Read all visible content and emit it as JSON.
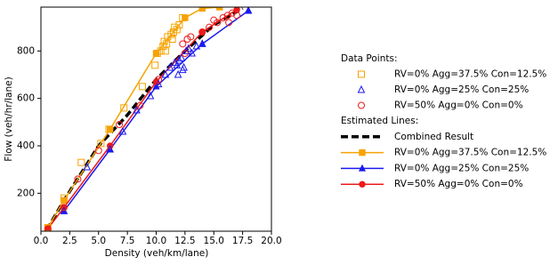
{
  "chart_data": {
    "type": "scatter",
    "x_label": "Density (veh/km/lane)",
    "y_label": "Flow (veh/hr/lane)",
    "xlim": [
      0,
      20
    ],
    "ylim": [
      40,
      985
    ],
    "xticks": [
      {
        "value": 0,
        "label": "0.0"
      },
      {
        "value": 2.5,
        "label": "2.5"
      },
      {
        "value": 5,
        "label": "5.0"
      },
      {
        "value": 7.5,
        "label": "7.5"
      },
      {
        "value": 10,
        "label": "10.0"
      },
      {
        "value": 12.5,
        "label": "12.5"
      },
      {
        "value": 15,
        "label": "15.0"
      },
      {
        "value": 17.5,
        "label": "17.5"
      },
      {
        "value": 20,
        "label": "20.0"
      }
    ],
    "yticks": [
      200,
      400,
      600,
      800
    ],
    "scatter": {
      "legend_title": "Data Points:",
      "series": [
        {
          "name": "RV=0% Agg=37.5% Con=12.5%",
          "color": "#f5a300",
          "marker": "square",
          "x": [
            0.6,
            2,
            3.5,
            5.2,
            5.9,
            7.2,
            8.8,
            9.9,
            10.1,
            10.4,
            10.6,
            10.7,
            10.9,
            11.0,
            11.3,
            11.5,
            11.6,
            11.8,
            12.0,
            12.3,
            11.4,
            10.8
          ],
          "y": [
            55,
            180,
            330,
            410,
            470,
            560,
            650,
            740,
            790,
            800,
            820,
            840,
            830,
            860,
            870,
            880,
            900,
            890,
            910,
            940,
            850,
            800
          ]
        },
        {
          "name": "RV=0% Agg=25% Con=25%",
          "color": "#1a1aee",
          "marker": "triangle",
          "x": [
            2,
            4,
            6,
            7.1,
            8.3,
            9.5,
            10.2,
            10.8,
            11.2,
            11.6,
            11.8,
            12,
            12.2,
            12.4,
            12.6,
            12.8,
            13.1,
            13.5,
            11.9,
            12.3,
            14,
            18
          ],
          "y": [
            125,
            310,
            385,
            460,
            550,
            610,
            660,
            700,
            730,
            750,
            740,
            760,
            770,
            730,
            800,
            810,
            790,
            820,
            700,
            720,
            830,
            970
          ]
        },
        {
          "name": "RV=50% Agg=0% Con=0%",
          "color": "#ee1a1a",
          "marker": "circle",
          "x": [
            0.6,
            2,
            3.2,
            5,
            6.8,
            8.6,
            10.2,
            12.5,
            12.3,
            13,
            14,
            14.6,
            15.3,
            15.8,
            16.2,
            16.6,
            17,
            16.3,
            15,
            12.7
          ],
          "y": [
            50,
            140,
            260,
            380,
            490,
            570,
            680,
            790,
            830,
            860,
            880,
            900,
            920,
            940,
            950,
            960,
            950,
            920,
            930,
            850
          ]
        }
      ]
    },
    "lines": {
      "legend_title": "Estimated Lines:",
      "series": [
        {
          "name": "Combined Result",
          "color": "#000000",
          "dashed": true,
          "marker": null,
          "x": [
            0.5,
            2,
            5,
            7.5,
            10,
            12.5,
            15,
            17.5
          ],
          "y": [
            45,
            170,
            400,
            530,
            680,
            800,
            910,
            980
          ]
        },
        {
          "name": "RV=0% Agg=37.5% Con=12.5%",
          "color": "#f5a300",
          "dashed": false,
          "marker": "square",
          "x": [
            0.6,
            2,
            6,
            10,
            12.5,
            14,
            15.5
          ],
          "y": [
            55,
            170,
            470,
            790,
            940,
            980,
            985
          ]
        },
        {
          "name": "RV=0% Agg=25% Con=25%",
          "color": "#1a1aee",
          "dashed": false,
          "marker": "triangle",
          "x": [
            2,
            6,
            10,
            14,
            18
          ],
          "y": [
            125,
            385,
            650,
            830,
            970
          ]
        },
        {
          "name": "RV=50% Agg=0% Con=0%",
          "color": "#ee1a1a",
          "dashed": false,
          "marker": "circle",
          "x": [
            0.6,
            2,
            6,
            10,
            14,
            17
          ],
          "y": [
            50,
            140,
            400,
            670,
            880,
            975
          ]
        }
      ]
    }
  }
}
